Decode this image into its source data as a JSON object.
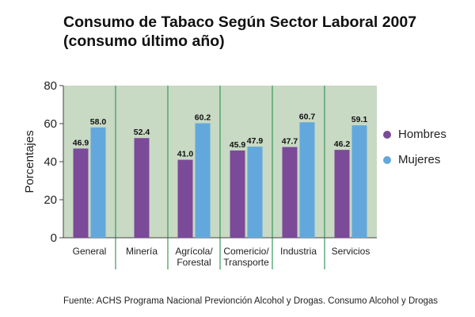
{
  "title_line1": "Consumo de Tabaco Según Sector Laboral 2007",
  "title_line2": "(consumo último año)",
  "source": "Fuente: ACHS Programa Nacional Previonción Alcohol y Drogas. Consumo Alcohol y Drogas",
  "colors": {
    "hombres": "#7b4a98",
    "mujeres": "#62a8dc",
    "background": "#c8d9c4",
    "separator": "#3a9a5c"
  },
  "chart_data": {
    "type": "bar",
    "title": "Consumo de Tabaco Según Sector Laboral 2007 (consumo último año)",
    "ylabel": "Porcentajes",
    "xlabel": "",
    "ylim": [
      0,
      80
    ],
    "yticks": [
      0,
      20,
      40,
      60,
      80
    ],
    "categories": [
      [
        "General"
      ],
      [
        "Minería"
      ],
      [
        "Agrícola/",
        "Forestal"
      ],
      [
        "Comericio/",
        "Transporte"
      ],
      [
        "Industria"
      ],
      [
        "Servicios"
      ]
    ],
    "series": [
      {
        "name": "Hombres",
        "values": [
          46.9,
          52.4,
          41.0,
          45.9,
          47.7,
          46.2
        ]
      },
      {
        "name": "Mujeres",
        "values": [
          58.0,
          null,
          60.2,
          47.9,
          60.7,
          59.1
        ]
      }
    ],
    "data_labels": [
      [
        "46.9",
        "52.4",
        "41.0",
        "45.9",
        "47.7",
        "46.2"
      ],
      [
        "58.0",
        "",
        "60.2",
        "47.9",
        "60.7",
        "59.1"
      ]
    ],
    "legend_position": "right",
    "grid": false
  }
}
